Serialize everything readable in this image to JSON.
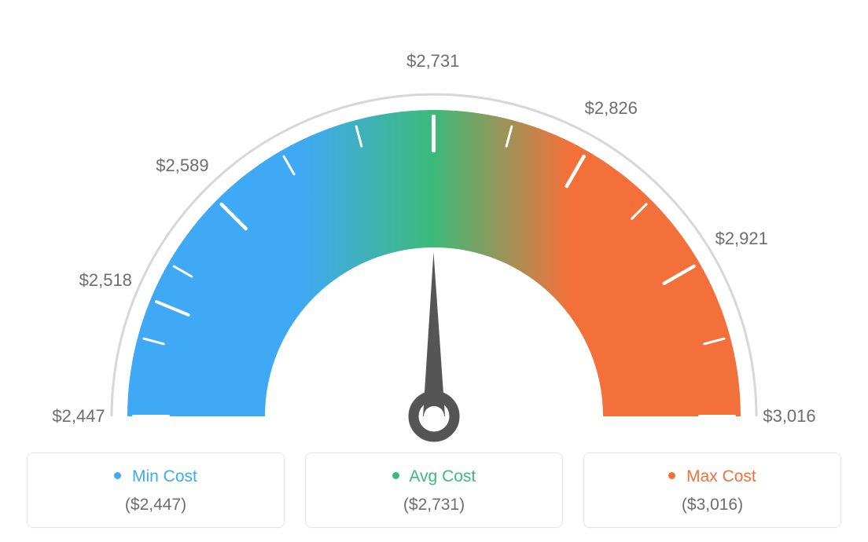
{
  "gauge": {
    "type": "gauge",
    "min": 2447,
    "max": 3016,
    "value": 2731,
    "tick_values": [
      2447,
      2518,
      2589,
      2731,
      2826,
      2921,
      3016
    ],
    "tick_labels": [
      "$2,447",
      "$2,518",
      "$2,589",
      "$2,731",
      "$2,826",
      "$2,921",
      "$3,016"
    ],
    "start_angle_deg": 180,
    "end_angle_deg": 0,
    "colors": {
      "min": "#3fa9f5",
      "avg": "#3cba7a",
      "max": "#f3703a",
      "needle": "#555555",
      "outer_arc": "#d7d7d7",
      "tick": "#ffffff",
      "label_text": "#6d6d6d",
      "background": "#ffffff"
    },
    "ring_outer_radius": 390,
    "ring_inner_radius": 215,
    "outer_border_radius": 410,
    "label_fontsize": 22
  },
  "legend": {
    "items": [
      {
        "title": "Min Cost",
        "value": "($2,447)",
        "dot_color": "#3fa9f5"
      },
      {
        "title": "Avg Cost",
        "value": "($2,731)",
        "dot_color": "#3cba7a"
      },
      {
        "title": "Max Cost",
        "value": "($3,016)",
        "dot_color": "#f3703a"
      }
    ],
    "title_fontsize": 21,
    "value_fontsize": 21,
    "value_color": "#6d6d6d",
    "card_border_color": "#e5e5e5",
    "card_border_radius": 8
  }
}
